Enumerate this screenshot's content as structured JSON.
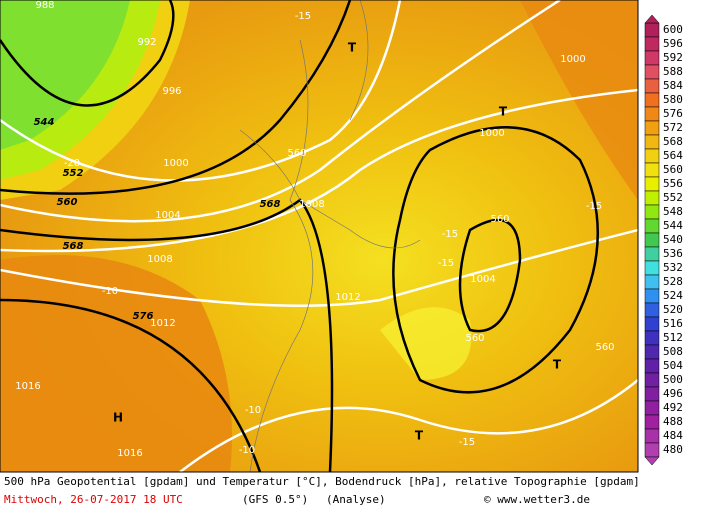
{
  "map": {
    "labels": [
      "988",
      "992",
      "996",
      "1000",
      "1004",
      "1008",
      "1012",
      "1016",
      "1016",
      "544",
      "552",
      "560",
      "568",
      "568",
      "576",
      "1008",
      "1012",
      "1000",
      "1000",
      "1004",
      "560",
      "560",
      "560",
      "560",
      "-20",
      "-15",
      "-15",
      "-15",
      "-15",
      "-15",
      "-10",
      "-10",
      "-10",
      "T",
      "T",
      "T",
      "T",
      "H"
    ]
  },
  "colorbar": {
    "labels": [
      600,
      596,
      592,
      588,
      584,
      580,
      576,
      572,
      568,
      564,
      560,
      556,
      552,
      548,
      544,
      540,
      536,
      532,
      528,
      524,
      520,
      516,
      512,
      508,
      504,
      500,
      496,
      492,
      488,
      484,
      480
    ],
    "colors": [
      "#b0205a",
      "#c02860",
      "#d03868",
      "#e05060",
      "#e86040",
      "#f07020",
      "#f08818",
      "#f0a010",
      "#f0b810",
      "#f0d010",
      "#f0e010",
      "#e8f000",
      "#c0f000",
      "#90e810",
      "#60d830",
      "#40c850",
      "#40d0a0",
      "#40e0e0",
      "#40c0f0",
      "#3090f0",
      "#3060e0",
      "#3040d0",
      "#4030c0",
      "#5028b0",
      "#6020a8",
      "#7020a0",
      "#8020a0",
      "#9020a0",
      "#a020a0",
      "#a830a8",
      "#b040b0"
    ]
  },
  "caption": {
    "line1": "500 hPa Geopotential [gpdam] und Temperatur [°C], Bodendruck [hPa], relative Topographie [gpdam]",
    "date": "Mittwoch, 26-07-2017  18 UTC",
    "model": "(GFS 0.5°)",
    "run": "(Analyse)",
    "credit": "© www.wetter3.de"
  }
}
